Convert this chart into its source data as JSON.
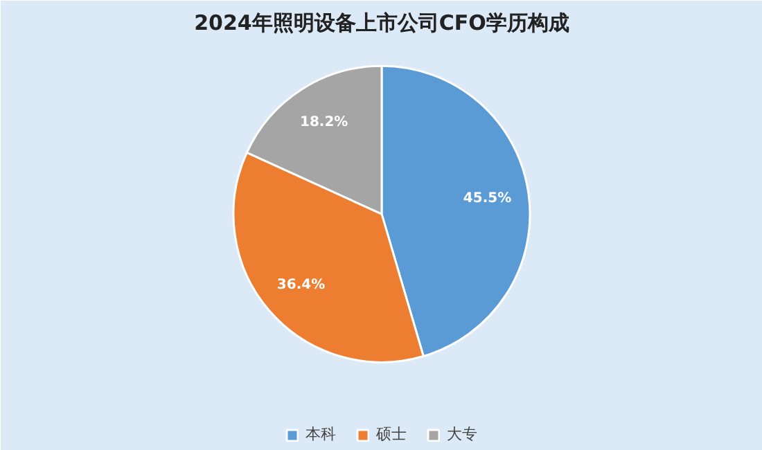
{
  "chart_data": {
    "type": "pie",
    "title": "2024年照明设备上市公司CFO学历构成",
    "categories": [
      "本科",
      "硕士",
      "大专"
    ],
    "values": [
      45.5,
      36.4,
      18.2
    ],
    "value_labels": [
      "45.5%",
      "36.4%",
      "18.2%"
    ],
    "colors": [
      "#5b9bd5",
      "#ed7d31",
      "#a5a5a5"
    ],
    "legend": "bottom"
  }
}
